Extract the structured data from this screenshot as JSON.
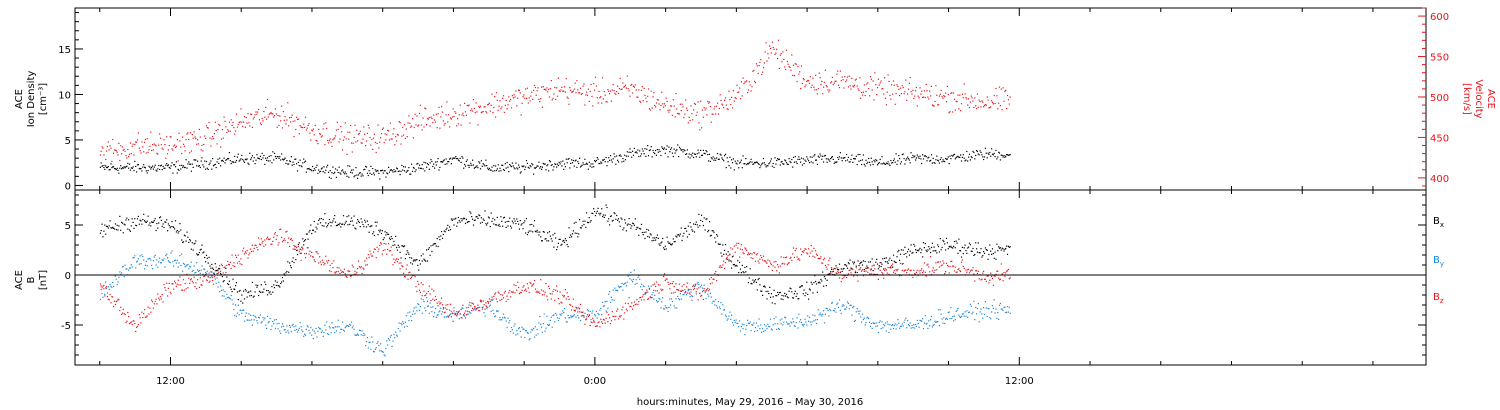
{
  "chart_data": [
    {
      "type": "scatter",
      "panel": "top",
      "ylabel_left": [
        "ACE",
        "Ion Density",
        "[cm⁻³]"
      ],
      "ylabel_right": [
        "ACE",
        "Velocity",
        "[km/s]"
      ],
      "ylim_left": [
        -0.5,
        19.5
      ],
      "ylim_right": [
        385,
        610
      ],
      "yticks_left": [
        0,
        5,
        10,
        15
      ],
      "yticks_right": [
        400,
        450,
        500,
        550,
        600
      ],
      "x_hours": [
        -14,
        -13,
        -12,
        -11,
        -10,
        -9,
        -8,
        -7,
        -6,
        -5,
        -4,
        -3,
        -2,
        -1,
        0,
        1,
        2,
        3,
        4,
        5,
        6,
        7,
        8,
        9,
        10,
        11
      ],
      "series": [
        {
          "color": "#000000",
          "axis": "left",
          "values": [
            2.0,
            2.0,
            2.0,
            2.5,
            3.0,
            3.0,
            2.0,
            1.5,
            1.5,
            2.0,
            3.0,
            2.0,
            2.0,
            2.5,
            2.5,
            3.5,
            4.0,
            3.5,
            2.5,
            2.5,
            2.8,
            3.0,
            2.5,
            3.0,
            3.0,
            3.5
          ]
        },
        {
          "color": "#e8151b",
          "axis": "right",
          "values": [
            430,
            440,
            440,
            450,
            470,
            480,
            460,
            450,
            450,
            470,
            480,
            490,
            500,
            510,
            505,
            510,
            490,
            480,
            500,
            560,
            520,
            520,
            510,
            505,
            500,
            495
          ]
        }
      ]
    },
    {
      "type": "scatter",
      "panel": "bottom",
      "ylabel_left": [
        "ACE",
        "B",
        "[nT]"
      ],
      "ylim": [
        -9,
        8.5
      ],
      "yticks": [
        -5,
        0,
        5
      ],
      "zero_line": true,
      "x_hours": [
        -14,
        -13,
        -12,
        -11,
        -10,
        -9,
        -8,
        -7,
        -6,
        -5,
        -4,
        -3,
        -2,
        -1,
        0,
        1,
        2,
        3,
        4,
        5,
        6,
        7,
        8,
        9,
        10,
        11
      ],
      "series": [
        {
          "name": "B",
          "sub": "x",
          "color": "#000000",
          "values": [
            4.5,
            5.5,
            5.0,
            2.0,
            -2.0,
            -1.0,
            5.0,
            5.5,
            4.5,
            1.0,
            5.5,
            5.5,
            5.0,
            3.0,
            6.5,
            5.0,
            3.0,
            5.5,
            1.0,
            -2.0,
            -1.5,
            1.0,
            1.0,
            2.5,
            3.0,
            2.5
          ]
        },
        {
          "name": "B",
          "sub": "y",
          "color": "#1c87d8",
          "values": [
            -2.0,
            1.5,
            1.5,
            0.5,
            -4.0,
            -5.0,
            -5.5,
            -5.0,
            -7.5,
            -3.0,
            -4.0,
            -3.0,
            -6.0,
            -4.0,
            -4.0,
            0.0,
            -3.0,
            -1.0,
            -5.0,
            -5.0,
            -4.5,
            -3.0,
            -5.0,
            -5.0,
            -4.0,
            -3.5
          ]
        },
        {
          "name": "B",
          "sub": "z",
          "color": "#e8151b",
          "values": [
            -1.0,
            -5.0,
            -1.0,
            -0.5,
            2.0,
            4.0,
            2.0,
            0.0,
            3.0,
            -1.0,
            -4.0,
            -2.5,
            -1.0,
            -2.0,
            -5.0,
            -3.0,
            -0.5,
            -2.0,
            3.0,
            1.0,
            2.5,
            0.0,
            0.5,
            0.5,
            1.0,
            0.0
          ]
        }
      ]
    }
  ],
  "x_axis": {
    "title": "hours:minutes, May 29, 2016 – May 30, 2016",
    "major_ticks_hours": [
      -12,
      0,
      12
    ],
    "major_labels": [
      "12:00",
      "0:00",
      "12:00"
    ],
    "range_hours": [
      -14.7,
      23.5
    ],
    "minor_step_hours": 2
  },
  "colors": {
    "black": "#000000",
    "red": "#e8151b",
    "blue": "#1c87d8"
  }
}
